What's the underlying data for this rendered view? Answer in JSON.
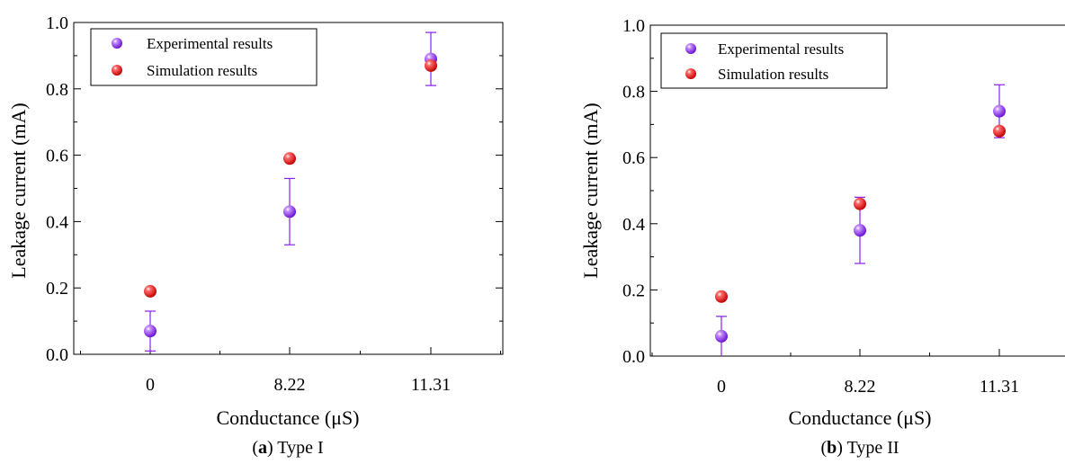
{
  "chart_data": [
    {
      "type": "scatter",
      "caption_letter": "a",
      "caption_rest": ") Type I",
      "xlabel": "Conductance (μS)",
      "ylabel": "Leakage current (mA)",
      "categories": [
        "0",
        "8.22",
        "11.31"
      ],
      "y_ticks": [
        "0.0",
        "0.2",
        "0.4",
        "0.6",
        "0.8",
        "1.0"
      ],
      "ylim": [
        0,
        1.0
      ],
      "legend_position": "top-left",
      "series": [
        {
          "name": "Experimental results",
          "color": "#8b1ef0",
          "values": [
            0.07,
            0.43,
            0.89
          ],
          "error": [
            0.06,
            0.1,
            0.08
          ]
        },
        {
          "name": "Simulation results",
          "color": "#ee1111",
          "values": [
            0.19,
            0.59,
            0.87
          ]
        }
      ]
    },
    {
      "type": "scatter",
      "caption_letter": "b",
      "caption_rest": ") Type II",
      "xlabel": "Conductance (μS)",
      "ylabel": "Leakage current (mA)",
      "categories": [
        "0",
        "8.22",
        "11.31"
      ],
      "y_ticks": [
        "0.0",
        "0.2",
        "0.4",
        "0.6",
        "0.8",
        "1.0"
      ],
      "ylim": [
        0,
        1.0
      ],
      "legend_position": "top-left",
      "series": [
        {
          "name": "Experimental results",
          "color": "#8b1ef0",
          "values": [
            0.06,
            0.38,
            0.74
          ],
          "error": [
            0.06,
            0.1,
            0.08
          ]
        },
        {
          "name": "Simulation results",
          "color": "#ee1111",
          "values": [
            0.18,
            0.46,
            0.68
          ]
        }
      ]
    }
  ]
}
